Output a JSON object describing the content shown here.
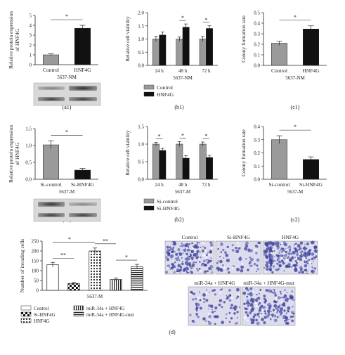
{
  "chart_data": [
    {
      "panel": "(a1)",
      "type": "bar",
      "categories": [
        "Control",
        "HNF4G"
      ],
      "values": [
        1.0,
        3.7
      ],
      "errors": [
        0.1,
        0.3
      ],
      "ylabel": "Relative protein expression of HNF4G",
      "xlabel": "5637-NM",
      "ylim": [
        0,
        5
      ],
      "yticks": [
        "0",
        "1",
        "2",
        "3",
        "4",
        "5"
      ],
      "significance": "*",
      "bar_colors": [
        "#9a9a9a",
        "#111111"
      ]
    },
    {
      "panel": "(b1)",
      "type": "bar",
      "categories": [
        "24 h",
        "48 h",
        "72 h"
      ],
      "series": [
        {
          "name": "Control",
          "values": [
            1.0,
            1.0,
            1.0
          ],
          "errors": [
            0.1,
            0.08,
            0.1
          ],
          "color": "#9a9a9a"
        },
        {
          "name": "HNF4G",
          "values": [
            1.15,
            1.45,
            1.4
          ],
          "errors": [
            0.12,
            0.12,
            0.1
          ],
          "color": "#111111"
        }
      ],
      "ylabel": "Relative cell viability",
      "xlabel": "5637-NM",
      "ylim": [
        0,
        2.0
      ],
      "yticks": [
        "0.0",
        "0.5",
        "1.0",
        "1.5",
        "2.0"
      ],
      "significance": [
        "",
        "*",
        "*"
      ],
      "legend": "bottom"
    },
    {
      "panel": "(c1)",
      "type": "bar",
      "categories": [
        "Control",
        "HNF4G"
      ],
      "values": [
        0.21,
        0.345
      ],
      "errors": [
        0.02,
        0.03
      ],
      "ylabel": "Colony formation rate",
      "xlabel": "5637-NM",
      "ylim": [
        0,
        0.5
      ],
      "yticks": [
        "0.0",
        "0.1",
        "0.2",
        "0.3",
        "0.4",
        "0.5"
      ],
      "significance": "*",
      "bar_colors": [
        "#9a9a9a",
        "#111111"
      ]
    },
    {
      "panel": "(a2)",
      "type": "bar",
      "categories": [
        "Si-control",
        "Si-HNF4G"
      ],
      "values": [
        1.02,
        0.27
      ],
      "errors": [
        0.12,
        0.05
      ],
      "ylabel": "Relative protein expression of HNF4G",
      "xlabel": "5637-M",
      "ylim": [
        0,
        1.5
      ],
      "yticks": [
        "0.0",
        "0.5",
        "1.0",
        "1.5"
      ],
      "significance": "*",
      "bar_colors": [
        "#9a9a9a",
        "#111111"
      ]
    },
    {
      "panel": "(b2)",
      "type": "bar",
      "categories": [
        "24 h",
        "48 h",
        "72 h"
      ],
      "series": [
        {
          "name": "Si-control",
          "values": [
            1.0,
            1.0,
            1.0
          ],
          "errors": [
            0.05,
            0.07,
            0.06
          ],
          "color": "#9a9a9a"
        },
        {
          "name": "Si-HNF4G",
          "values": [
            0.82,
            0.6,
            0.62
          ],
          "errors": [
            0.06,
            0.07,
            0.06
          ],
          "color": "#111111"
        }
      ],
      "ylabel": "Relative cell viability",
      "xlabel": "5637-M",
      "ylim": [
        0,
        1.5
      ],
      "yticks": [
        "0.0",
        "0.5",
        "1.0",
        "1.5"
      ],
      "significance": [
        "*",
        "*",
        "*"
      ],
      "legend": "bottom"
    },
    {
      "panel": "(c2)",
      "type": "bar",
      "categories": [
        "Si-control",
        "Si-HNF4G"
      ],
      "values": [
        0.3,
        0.15
      ],
      "errors": [
        0.03,
        0.02
      ],
      "ylabel": "Colony formation rate",
      "xlabel": "5637-M",
      "ylim": [
        0,
        0.4
      ],
      "yticks": [
        "0.0",
        "0.1",
        "0.2",
        "0.3",
        "0.4"
      ],
      "significance": "*",
      "bar_colors": [
        "#9a9a9a",
        "#111111"
      ]
    },
    {
      "panel": "(d)",
      "type": "bar",
      "categories": [
        "Control",
        "Si-HNF4G",
        "HNF4G",
        "miR-34a + HNF4G",
        "miR-34a + HNF4G-mut"
      ],
      "values": [
        130,
        35,
        200,
        55,
        120
      ],
      "errors": [
        12,
        5,
        15,
        8,
        12
      ],
      "ylabel": "Number of invading cells",
      "xlabel": "5637-M",
      "ylim": [
        0,
        250
      ],
      "yticks": [
        "0",
        "50",
        "100",
        "150",
        "200",
        "250"
      ],
      "significance_pairs": [
        {
          "pair": [
            0,
            1
          ],
          "label": "**"
        },
        {
          "pair": [
            0,
            2
          ],
          "label": "*"
        },
        {
          "pair": [
            2,
            3
          ],
          "label": "**"
        },
        {
          "pair": [
            3,
            4
          ],
          "label": "*"
        }
      ],
      "legend": "bottom"
    }
  ],
  "image_labels": {
    "control": "Control",
    "si_hnf4g": "Si-HNF4G",
    "hnf4g": "HNF4G",
    "mir_hnf4g": "miR-34a + HNF4G",
    "mir_hnf4g_mut": "miR-34a + HNF4G-mut"
  },
  "colors": {
    "gray": "#9a9a9a",
    "black": "#111111",
    "stain": "#3b3f9a"
  }
}
